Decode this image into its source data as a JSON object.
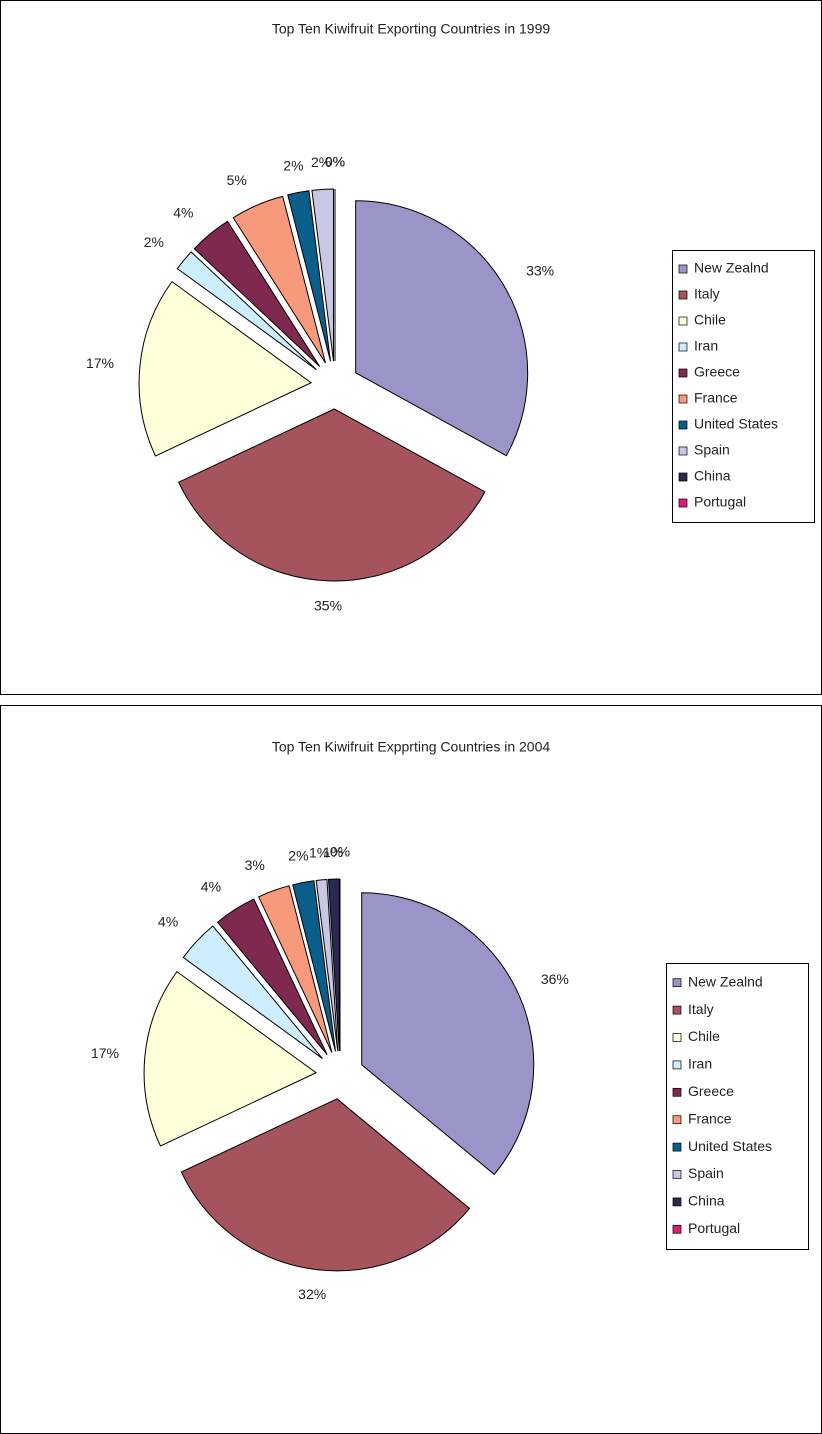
{
  "chart_data": [
    {
      "type": "pie",
      "title": "Top Ten Kiwifruit Exporting Countries in 1999",
      "categories": [
        "New Zealnd",
        "Italy",
        "Chile",
        "Iran",
        "Greece",
        "France",
        "United States",
        "Spain",
        "China",
        "Portugal"
      ],
      "values": [
        33,
        35,
        17,
        2,
        4,
        5,
        2,
        2,
        0,
        0
      ],
      "value_labels": [
        "33%",
        "35%",
        "17%",
        "2%",
        "4%",
        "5%",
        "2%",
        "2%",
        "0%",
        "0%"
      ],
      "colors": [
        "#9b94c8",
        "#a5535d",
        "#ffffd9",
        "#cceeff",
        "#7f2850",
        "#f79a7b",
        "#0a5f8a",
        "#c9c6e6",
        "#2a2a50",
        "#e0197b"
      ],
      "legend": "right"
    },
    {
      "type": "pie",
      "title": "Top Ten Kiwifruit Expprting Countries in 2004",
      "categories": [
        "New Zealnd",
        "Italy",
        "Chile",
        "Iran",
        "Greece",
        "France",
        "United States",
        "Spain",
        "China",
        "Portugal"
      ],
      "values": [
        36,
        32,
        17,
        4,
        4,
        3,
        2,
        1,
        1,
        0
      ],
      "value_labels": [
        "36%",
        "32%",
        "17%",
        "4%",
        "4%",
        "3%",
        "2%",
        "1%",
        "1%",
        "0%"
      ],
      "colors": [
        "#9b94c8",
        "#a5535d",
        "#ffffd9",
        "#cceeff",
        "#7f2850",
        "#f79a7b",
        "#0a5f8a",
        "#c9c6e6",
        "#2a2a50",
        "#e0197b"
      ],
      "legend": "right"
    }
  ]
}
